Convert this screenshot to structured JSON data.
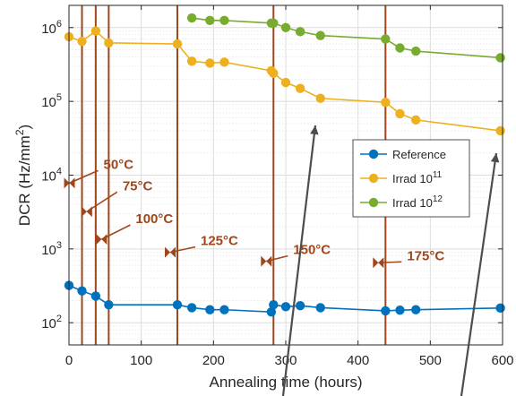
{
  "chart_data": {
    "type": "line",
    "xlabel": "Annealing time (hours)",
    "ylabel": "DCR (Hz/mm",
    "ylabel_sup": "2",
    "ylabel_close": ")",
    "xlim": [
      0,
      600
    ],
    "ylim": [
      50,
      2000000
    ],
    "yscale": "log",
    "grid": true,
    "x_ticks": [
      "0",
      "100",
      "200",
      "300",
      "400",
      "500",
      "600"
    ],
    "y_ticks": [
      {
        "base": "10",
        "exp": "2",
        "value": 100
      },
      {
        "base": "10",
        "exp": "3",
        "value": 1000
      },
      {
        "base": "10",
        "exp": "4",
        "value": 10000
      },
      {
        "base": "10",
        "exp": "5",
        "value": 100000
      },
      {
        "base": "10",
        "exp": "6",
        "value": 1000000
      }
    ],
    "legend_position": "center-right",
    "series": [
      {
        "name": "Reference",
        "color": "#0072bd",
        "x": [
          0,
          18,
          37,
          55,
          150,
          170,
          195,
          215,
          280,
          283,
          300,
          320,
          348,
          438,
          458,
          480,
          597
        ],
        "y": [
          320,
          270,
          230,
          175,
          175,
          160,
          150,
          150,
          140,
          175,
          165,
          170,
          160,
          145,
          148,
          150,
          158
        ]
      },
      {
        "name": "Irrad 10",
        "name_sup": "11",
        "color": "#edb120",
        "x": [
          0,
          18,
          37,
          55,
          150,
          170,
          195,
          215,
          280,
          283,
          300,
          320,
          348,
          438,
          458,
          480,
          597
        ],
        "y": [
          750000,
          650000,
          900000,
          620000,
          600000,
          350000,
          330000,
          340000,
          260000,
          240000,
          180000,
          150000,
          110000,
          97000,
          68000,
          56000,
          40000
        ]
      },
      {
        "name": "Irrad 10",
        "name_sup": "12",
        "color": "#77ac30",
        "x": [
          170,
          195,
          215,
          280,
          283,
          300,
          320,
          348,
          438,
          458,
          480,
          597
        ],
        "y": [
          1350000,
          1250000,
          1250000,
          1150000,
          1150000,
          1000000,
          880000,
          780000,
          700000,
          530000,
          480000,
          390000
        ]
      }
    ],
    "annealing_steps": [
      {
        "x": 18,
        "label": "50°C",
        "marker_y": 7800
      },
      {
        "x": 37,
        "label": "75°C",
        "marker_y": 3200
      },
      {
        "x": 55,
        "label": "100°C",
        "marker_y": 1350
      },
      {
        "x": 150,
        "label": "125°C",
        "marker_y": 900
      },
      {
        "x": 283,
        "label": "150°C",
        "marker_y": 680
      },
      {
        "x": 438,
        "label": "175°C",
        "marker_y": 650
      }
    ],
    "step_line_color": "#a0461c"
  }
}
